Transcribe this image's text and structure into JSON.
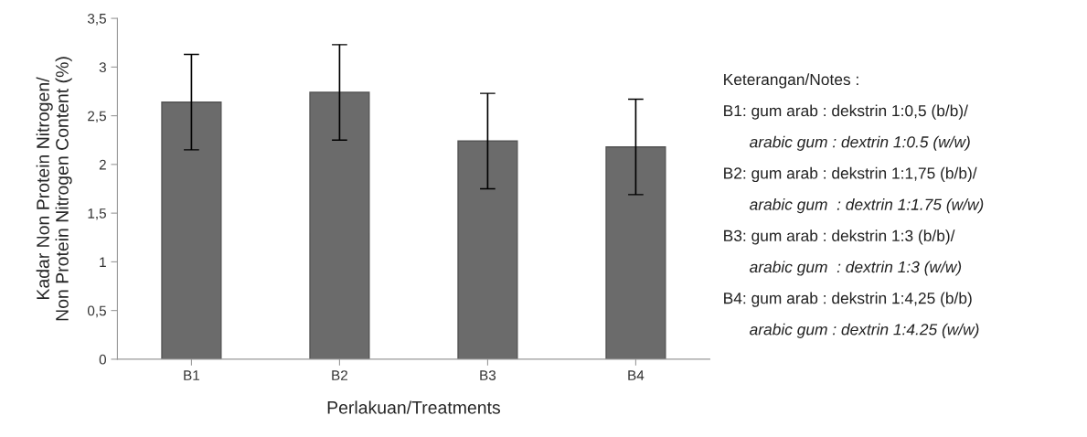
{
  "chart_data": {
    "type": "bar",
    "xlabel": "Perlakuan/Treatments",
    "ylabel": "Kadar Non Protein Nitrogen/\nNon Protein Nitrogen Content (%)",
    "categories": [
      "B1",
      "B2",
      "B3",
      "B4"
    ],
    "values": [
      2.64,
      2.74,
      2.24,
      2.18
    ],
    "errors": [
      0.49,
      0.49,
      0.49,
      0.49
    ],
    "color": "#6b6b6b",
    "ylim": [
      0,
      3.5
    ],
    "yticks": [
      0,
      {
        "value": 0.5,
        "label": "0,5"
      },
      1,
      {
        "value": 1.5,
        "label": "1,5"
      },
      2,
      {
        "value": 2.5,
        "label": "2,5"
      },
      3,
      {
        "value": 3.5,
        "label": "3,5"
      }
    ],
    "grid": false,
    "legend": false,
    "annotations": [
      "Keterangan/Notes :",
      "B1: gum arab : dekstrin 1:0,5 (b/b)/",
      "      arabic gum : dextrin 1:0.5 (w/w)",
      "B2: gum arab : dekstrin 1:1,75 (b/b)/",
      "      arabic gum  : dextrin 1:1.75 (w/w)",
      "B3: gum arab : dekstrin 1:3 (b/b)/",
      "      arabic gum  : dextrin 1:3 (w/w)",
      "B4: gum arab : dekstrin 1:4,25 (b/b)",
      "      arabic gum : dextrin 1:4.25 (w/w)"
    ]
  }
}
